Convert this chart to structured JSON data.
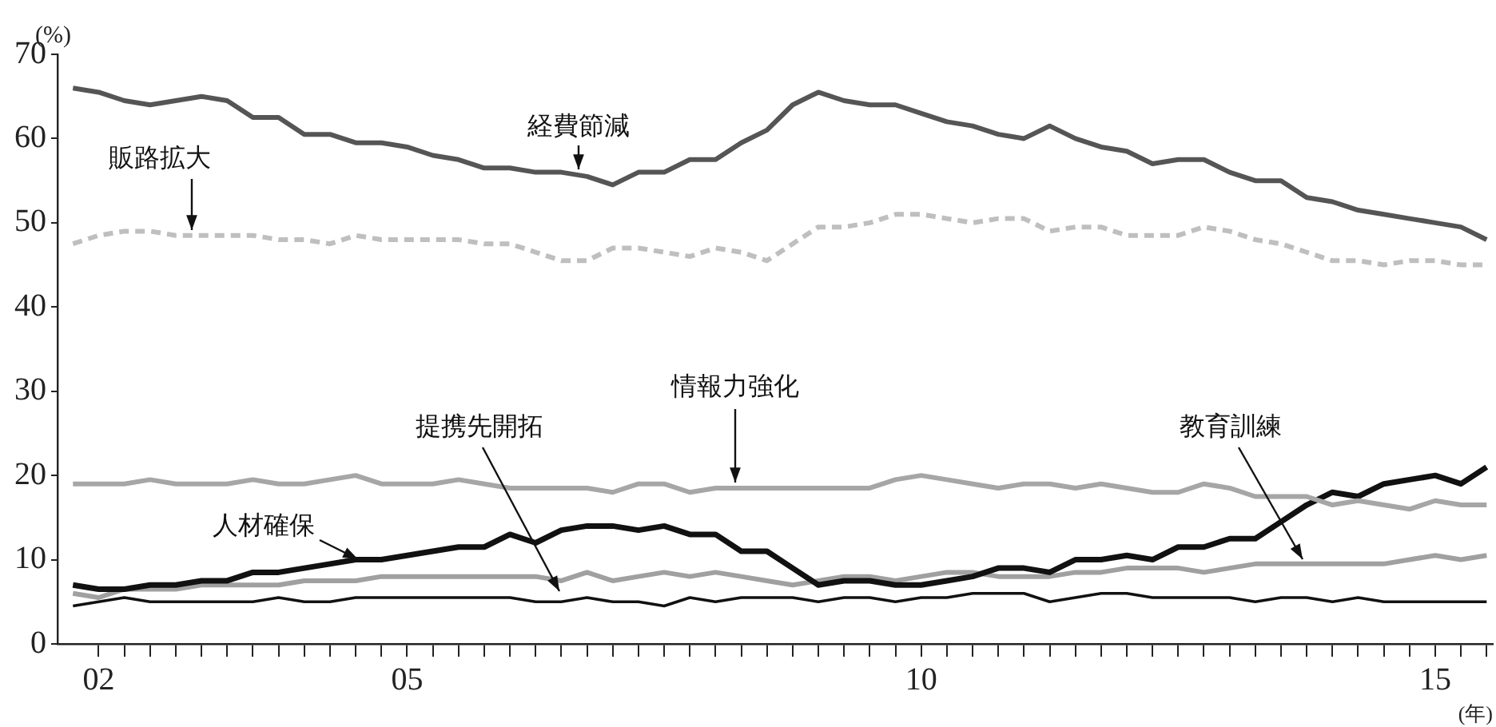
{
  "chart_data": {
    "type": "line",
    "ylabel": "(%)",
    "xlabel": "(年)",
    "xlim": [
      2001.6,
      2015.56
    ],
    "ylim": [
      0,
      70
    ],
    "yticks": [
      0,
      10,
      20,
      30,
      40,
      50,
      60,
      70
    ],
    "xticks": [
      {
        "value": 2002,
        "label": "02"
      },
      {
        "value": 2002.25,
        "label": null
      },
      {
        "value": 2002.5,
        "label": null
      },
      {
        "value": 2002.75,
        "label": null
      },
      {
        "value": 2003,
        "label": null
      },
      {
        "value": 2003.25,
        "label": null
      },
      {
        "value": 2003.5,
        "label": null
      },
      {
        "value": 2003.75,
        "label": null
      },
      {
        "value": 2004,
        "label": null
      },
      {
        "value": 2004.25,
        "label": null
      },
      {
        "value": 2004.5,
        "label": null
      },
      {
        "value": 2004.75,
        "label": null
      },
      {
        "value": 2005,
        "label": "05"
      },
      {
        "value": 2005.25,
        "label": null
      },
      {
        "value": 2005.5,
        "label": null
      },
      {
        "value": 2005.75,
        "label": null
      },
      {
        "value": 2006,
        "label": null
      },
      {
        "value": 2006.25,
        "label": null
      },
      {
        "value": 2006.5,
        "label": null
      },
      {
        "value": 2006.75,
        "label": null
      },
      {
        "value": 2007,
        "label": null
      },
      {
        "value": 2007.25,
        "label": null
      },
      {
        "value": 2007.5,
        "label": null
      },
      {
        "value": 2007.75,
        "label": null
      },
      {
        "value": 2008,
        "label": null
      },
      {
        "value": 2008.25,
        "label": null
      },
      {
        "value": 2008.5,
        "label": null
      },
      {
        "value": 2008.75,
        "label": null
      },
      {
        "value": 2009,
        "label": null
      },
      {
        "value": 2009.25,
        "label": null
      },
      {
        "value": 2009.5,
        "label": null
      },
      {
        "value": 2009.75,
        "label": null
      },
      {
        "value": 2010,
        "label": "10"
      },
      {
        "value": 2010.25,
        "label": null
      },
      {
        "value": 2010.5,
        "label": null
      },
      {
        "value": 2010.75,
        "label": null
      },
      {
        "value": 2011,
        "label": null
      },
      {
        "value": 2011.25,
        "label": null
      },
      {
        "value": 2011.5,
        "label": null
      },
      {
        "value": 2011.75,
        "label": null
      },
      {
        "value": 2012,
        "label": null
      },
      {
        "value": 2012.25,
        "label": null
      },
      {
        "value": 2012.5,
        "label": null
      },
      {
        "value": 2012.75,
        "label": null
      },
      {
        "value": 2013,
        "label": null
      },
      {
        "value": 2013.25,
        "label": null
      },
      {
        "value": 2013.5,
        "label": null
      },
      {
        "value": 2013.75,
        "label": null
      },
      {
        "value": 2014,
        "label": null
      },
      {
        "value": 2014.25,
        "label": null
      },
      {
        "value": 2014.5,
        "label": null
      },
      {
        "value": 2014.75,
        "label": null
      },
      {
        "value": 2015,
        "label": "15"
      },
      {
        "value": 2015.25,
        "label": null
      },
      {
        "value": 2015.5,
        "label": null
      }
    ],
    "x": [
      2001.75,
      2002,
      2002.25,
      2002.5,
      2002.75,
      2003,
      2003.25,
      2003.5,
      2003.75,
      2004,
      2004.25,
      2004.5,
      2004.75,
      2005,
      2005.25,
      2005.5,
      2005.75,
      2006,
      2006.25,
      2006.5,
      2006.75,
      2007,
      2007.25,
      2007.5,
      2007.75,
      2008,
      2008.25,
      2008.5,
      2008.75,
      2009,
      2009.25,
      2009.5,
      2009.75,
      2010,
      2010.25,
      2010.5,
      2010.75,
      2011,
      2011.25,
      2011.5,
      2011.75,
      2012,
      2012.25,
      2012.5,
      2012.75,
      2013,
      2013.25,
      2013.5,
      2013.75,
      2014,
      2014.25,
      2014.5,
      2014.75,
      2015,
      2015.25,
      2015.5
    ],
    "grid": false,
    "legend": false,
    "marker": "none",
    "line_style": "solid",
    "series": [
      {
        "name": "経費節減",
        "color": "#555555",
        "values": [
          66,
          65.5,
          64.5,
          64,
          64.5,
          65,
          64.5,
          62.5,
          62.5,
          60.5,
          60.5,
          59.5,
          59.5,
          59,
          58,
          57.5,
          56.5,
          56.5,
          56,
          56,
          55.5,
          54.5,
          56,
          56,
          57.5,
          57.5,
          59.5,
          61,
          64,
          65.5,
          64.5,
          64,
          64,
          63,
          62,
          61.5,
          60.5,
          60,
          61.5,
          60,
          59,
          58.5,
          57,
          57.5,
          57.5,
          56,
          55,
          55,
          53,
          52.5,
          51.5,
          51,
          50.5,
          50,
          49.5,
          48
        ]
      },
      {
        "name": "販路拡大",
        "color": "#bfbfbf",
        "line_style": "dashed",
        "values": [
          47.5,
          48.5,
          49,
          49,
          48.5,
          48.5,
          48.5,
          48.5,
          48,
          48,
          47.5,
          48.5,
          48,
          48,
          48,
          48,
          47.5,
          47.5,
          46.5,
          45.5,
          45.5,
          47,
          47,
          46.5,
          46,
          47,
          46.5,
          45.5,
          47.5,
          49.5,
          49.5,
          50,
          51,
          51,
          50.5,
          50,
          50.5,
          50.5,
          49,
          49.5,
          49.5,
          48.5,
          48.5,
          48.5,
          49.5,
          49,
          48,
          47.5,
          46.5,
          45.5,
          45.5,
          45,
          45.5,
          45.5,
          45,
          45
        ]
      },
      {
        "name": "情報力強化",
        "color": "#a6a6a6",
        "values": [
          19,
          19,
          19,
          19.5,
          19,
          19,
          19,
          19.5,
          19,
          19,
          19.5,
          20,
          19,
          19,
          19,
          19.5,
          19,
          18.5,
          18.5,
          18.5,
          18.5,
          18,
          19,
          19,
          18,
          18.5,
          18.5,
          18.5,
          18.5,
          18.5,
          18.5,
          18.5,
          19.5,
          20,
          19.5,
          19,
          18.5,
          19,
          19,
          18.5,
          19,
          18.5,
          18,
          18,
          19,
          18.5,
          17.5,
          17.5,
          17.5,
          16.5,
          17,
          16.5,
          16,
          17,
          16.5,
          16.5
        ]
      },
      {
        "name": "人材確保",
        "color": "#111111",
        "values": [
          7,
          6.5,
          6.5,
          7,
          7,
          7.5,
          7.5,
          8.5,
          8.5,
          9,
          9.5,
          10,
          10,
          10.5,
          11,
          11.5,
          11.5,
          13,
          12,
          13.5,
          14,
          14,
          13.5,
          14,
          13,
          13,
          11,
          11,
          9,
          7,
          7.5,
          7.5,
          7,
          7,
          7.5,
          8,
          9,
          9,
          8.5,
          10,
          10,
          10.5,
          10,
          11.5,
          11.5,
          12.5,
          12.5,
          14.5,
          16.5,
          18,
          17.5,
          19,
          19.5,
          20,
          19,
          21
        ]
      },
      {
        "name": "教育訓練",
        "color": "#a0a0a0",
        "values": [
          6,
          5.5,
          6.5,
          6.5,
          6.5,
          7,
          7,
          7,
          7,
          7.5,
          7.5,
          7.5,
          8,
          8,
          8,
          8,
          8,
          8,
          8,
          7.5,
          8.5,
          7.5,
          8,
          8.5,
          8,
          8.5,
          8,
          7.5,
          7,
          7.5,
          8,
          8,
          7.5,
          8,
          8.5,
          8.5,
          8,
          8,
          8,
          8.5,
          8.5,
          9,
          9,
          9,
          8.5,
          9,
          9.5,
          9.5,
          9.5,
          9.5,
          9.5,
          9.5,
          10,
          10.5,
          10,
          10.5
        ]
      },
      {
        "name": "提携先開拓",
        "color": "#111111",
        "values": [
          4.5,
          5,
          5.5,
          5,
          5,
          5,
          5,
          5,
          5.5,
          5,
          5,
          5.5,
          5.5,
          5.5,
          5.5,
          5.5,
          5.5,
          5.5,
          5,
          5,
          5.5,
          5,
          5,
          4.5,
          5.5,
          5,
          5.5,
          5.5,
          5.5,
          5,
          5.5,
          5.5,
          5,
          5.5,
          5.5,
          6,
          6,
          6,
          5,
          5.5,
          6,
          6,
          5.5,
          5.5,
          5.5,
          5.5,
          5,
          5.5,
          5.5,
          5,
          5.5,
          5,
          5,
          5,
          5,
          5
        ]
      }
    ]
  }
}
